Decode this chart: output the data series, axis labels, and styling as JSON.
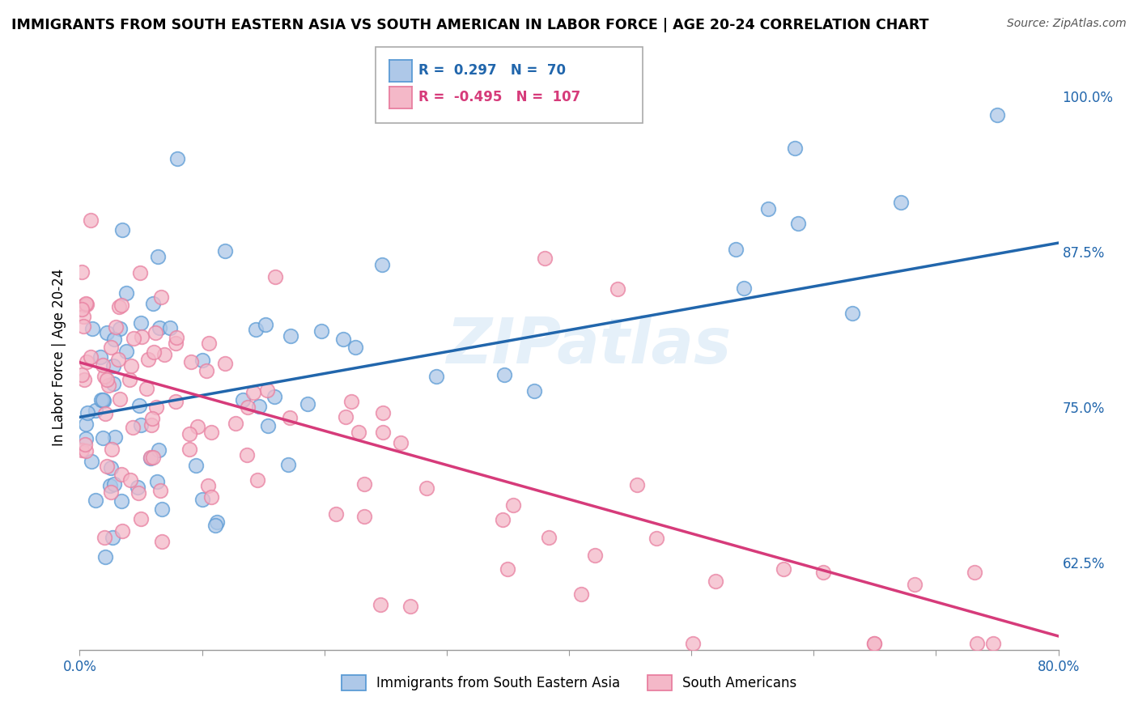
{
  "title": "IMMIGRANTS FROM SOUTH EASTERN ASIA VS SOUTH AMERICAN IN LABOR FORCE | AGE 20-24 CORRELATION CHART",
  "source_text": "Source: ZipAtlas.com",
  "ylabel": "In Labor Force | Age 20-24",
  "xlim": [
    0.0,
    0.8
  ],
  "ylim": [
    0.555,
    1.025
  ],
  "xticks": [
    0.0,
    0.1,
    0.2,
    0.3,
    0.4,
    0.5,
    0.6,
    0.7,
    0.8
  ],
  "xticklabels": [
    "0.0%",
    "",
    "",
    "",
    "",
    "",
    "",
    "",
    "80.0%"
  ],
  "yticks": [
    0.625,
    0.75,
    0.875,
    1.0
  ],
  "yticklabels": [
    "62.5%",
    "75.0%",
    "87.5%",
    "100.0%"
  ],
  "blue_R": 0.297,
  "blue_N": 70,
  "pink_R": -0.495,
  "pink_N": 107,
  "blue_color": "#aec8e8",
  "pink_color": "#f4b8c8",
  "blue_edge_color": "#5b9bd5",
  "pink_edge_color": "#e87fa0",
  "blue_line_color": "#2166ac",
  "pink_line_color": "#d63b7a",
  "watermark_text": "ZIPatlas",
  "legend_label_blue": "Immigrants from South Eastern Asia",
  "legend_label_pink": "South Americans",
  "blue_trendline_x": [
    0.0,
    0.8
  ],
  "blue_trendline_y": [
    0.742,
    0.882
  ],
  "pink_trendline_x": [
    0.0,
    0.8
  ],
  "pink_trendline_y": [
    0.786,
    0.566
  ]
}
